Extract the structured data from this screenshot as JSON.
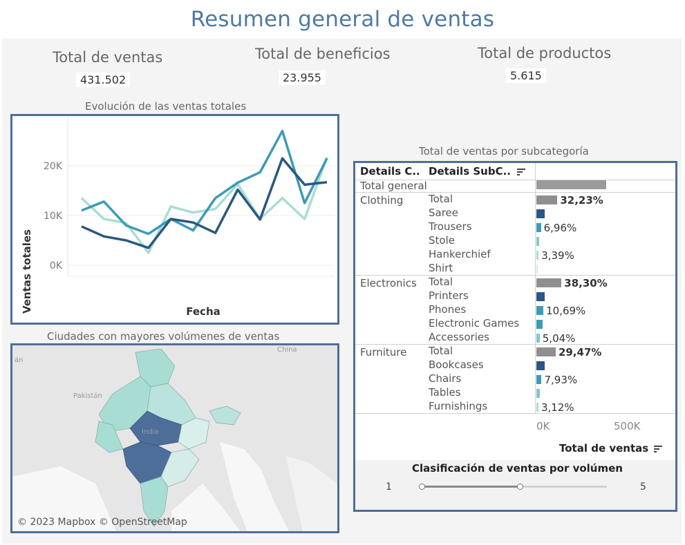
{
  "dashboard": {
    "title": "Resumen general de ventas"
  },
  "kpis": {
    "sales_label": "Total de ventas",
    "sales_value": "431.502",
    "profit_label": "Total de beneficios",
    "profit_value": "23.955",
    "products_label": "Total de productos",
    "products_value": "5.615"
  },
  "line_chart": {
    "title": "Evolución de las ventas totales"
  },
  "chart_data": {
    "type": "line",
    "title": "Evolución de las ventas totales",
    "xlabel": "Fecha",
    "ylabel": "Ventas totales",
    "yticks": [
      "0K",
      "10K",
      "20K"
    ],
    "ylim": [
      0,
      28000
    ],
    "grid": true,
    "x": [
      1,
      2,
      3,
      4,
      5,
      6,
      7,
      8,
      9,
      10,
      11,
      12
    ],
    "series": [
      {
        "color": "#2a5783",
        "values": [
          7800,
          5800,
          5000,
          3500,
          9300,
          8600,
          6500,
          15200,
          9200,
          21500,
          16200,
          16700
        ]
      },
      {
        "color": "#3c9bb5",
        "values": [
          11000,
          12800,
          8000,
          6300,
          9300,
          7000,
          13500,
          16600,
          18700,
          27000,
          12500,
          21500
        ]
      },
      {
        "color": "#a8ddd4",
        "values": [
          13500,
          9300,
          8500,
          2500,
          11800,
          10600,
          11300,
          16300,
          9300,
          13500,
          9300,
          21700
        ]
      }
    ]
  },
  "table": {
    "title": "Total de ventas por subcategoría",
    "header_cat": "Details C..",
    "header_sub": "Details SubC..",
    "total_general": "Total general",
    "axis_ticks": [
      "0K",
      "500K"
    ],
    "axis_title": "Total de ventas",
    "groups": [
      {
        "name": "Clothing",
        "rows": [
          {
            "label": "Total",
            "value": 138000,
            "pct": "32,23%",
            "color": "#8f8f8f",
            "bold": true
          },
          {
            "label": "Saree",
            "value": 55000,
            "pct": "",
            "color": "#2a5783"
          },
          {
            "label": "Trousers",
            "value": 30000,
            "pct": "6,96%",
            "color": "#3c9bb5"
          },
          {
            "label": "Stole",
            "value": 18000,
            "pct": "",
            "color": "#82c6cf"
          },
          {
            "label": "Hankerchief",
            "value": 14500,
            "pct": "3,39%",
            "color": "#a8ddd4"
          },
          {
            "label": "Shirt",
            "value": 5000,
            "pct": "",
            "color": "#cfe9e4"
          }
        ]
      },
      {
        "name": "Electronics",
        "rows": [
          {
            "label": "Total",
            "value": 165000,
            "pct": "38,30%",
            "color": "#8f8f8f",
            "bold": true
          },
          {
            "label": "Printers",
            "value": 55000,
            "pct": "",
            "color": "#2a5783"
          },
          {
            "label": "Phones",
            "value": 46000,
            "pct": "10,69%",
            "color": "#3c9bb5"
          },
          {
            "label": "Electronic Games",
            "value": 40000,
            "pct": "",
            "color": "#3c9bb5"
          },
          {
            "label": "Accessories",
            "value": 21700,
            "pct": "5,04%",
            "color": "#82c6cf"
          }
        ]
      },
      {
        "name": "Furniture",
        "rows": [
          {
            "label": "Total",
            "value": 127000,
            "pct": "29,47%",
            "color": "#8f8f8f",
            "bold": true
          },
          {
            "label": "Bookcases",
            "value": 55000,
            "pct": "",
            "color": "#2a5783"
          },
          {
            "label": "Chairs",
            "value": 34000,
            "pct": "7,93%",
            "color": "#3c9bb5"
          },
          {
            "label": "Tables",
            "value": 24000,
            "pct": "",
            "color": "#82c6cf"
          },
          {
            "label": "Furnishings",
            "value": 13500,
            "pct": "3,12%",
            "color": "#a8ddd4"
          }
        ]
      }
    ],
    "total_general_value": 431502
  },
  "slider": {
    "title": "Clasificación de ventas por volúmen",
    "min_label": "1",
    "max_label": "5",
    "value_fraction": 0.53
  },
  "map": {
    "title": "Ciudades con mayores volúmenes de ventas",
    "attribution": "© 2023 Mapbox © OpenStreetMap",
    "labels": {
      "india": "India",
      "pakistan": "Pakistán",
      "china": "China",
      "iran_partial": "án"
    }
  },
  "colors": {
    "accent": "#4e79a7",
    "frame": "#4e6e9a",
    "dark_blue": "#2a5783",
    "teal": "#3c9bb5",
    "light_teal": "#a8ddd4",
    "gray_bar": "#8f8f8f"
  },
  "icons": {
    "sort": "sort-descending-icon"
  }
}
